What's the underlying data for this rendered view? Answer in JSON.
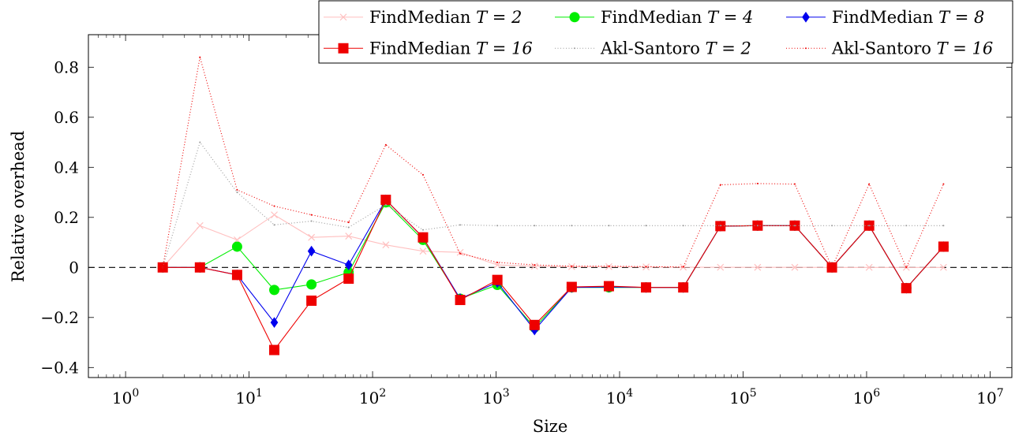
{
  "chart_data": {
    "type": "line",
    "xlabel": "Size",
    "ylabel": "Relative overhead",
    "xscale": "log10",
    "xlim": [
      0.5,
      15000000
    ],
    "ylim": [
      -0.44,
      0.93
    ],
    "grid": false,
    "legend_position": "top-right",
    "reference_line": {
      "y": 0,
      "style": "dashed",
      "color": "#000000"
    },
    "x_ticks": [
      {
        "base": "10",
        "exp": "0",
        "value": 1
      },
      {
        "base": "10",
        "exp": "1",
        "value": 10
      },
      {
        "base": "10",
        "exp": "2",
        "value": 100
      },
      {
        "base": "10",
        "exp": "3",
        "value": 1000
      },
      {
        "base": "10",
        "exp": "4",
        "value": 10000
      },
      {
        "base": "10",
        "exp": "5",
        "value": 100000
      },
      {
        "base": "10",
        "exp": "6",
        "value": 1000000
      },
      {
        "base": "10",
        "exp": "7",
        "value": 10000000
      }
    ],
    "y_ticks": [
      {
        "label": "−0.4",
        "value": -0.4
      },
      {
        "label": "−0.2",
        "value": -0.2
      },
      {
        "label": "0",
        "value": 0
      },
      {
        "label": "0.2",
        "value": 0.2
      },
      {
        "label": "0.4",
        "value": 0.4
      },
      {
        "label": "0.6",
        "value": 0.6
      },
      {
        "label": "0.8",
        "value": 0.8
      }
    ],
    "x": [
      2,
      4,
      8,
      16,
      32,
      64,
      128,
      256,
      512,
      1024,
      2048,
      4096,
      8192,
      16384,
      32768,
      65536,
      131072,
      262144,
      524288,
      1048576,
      2097152,
      4194304
    ],
    "series": [
      {
        "name": "FindMedian",
        "param": "T = 2",
        "color": "#ffbfbf",
        "marker": "x",
        "dash": "",
        "values": [
          0,
          0.167,
          0.11,
          0.21,
          0.12,
          0.125,
          0.09,
          0.065,
          0.06,
          0.01,
          0.005,
          0.003,
          0.003,
          0.002,
          0.001,
          0.0005,
          0.0003,
          0.0002,
          0.0001,
          0.0001,
          0.0001,
          0.0001
        ]
      },
      {
        "name": "FindMedian",
        "param": "T = 4",
        "color": "#00ee00",
        "marker": "circle",
        "dash": "",
        "values": [
          0,
          0,
          0.083,
          -0.09,
          -0.068,
          -0.02,
          0.26,
          0.11,
          -0.125,
          -0.07,
          -0.24,
          -0.08,
          -0.08,
          -0.08,
          -0.08,
          0.165,
          0.167,
          0.167,
          0,
          0.167,
          -0.083,
          0.083
        ]
      },
      {
        "name": "FindMedian",
        "param": "T = 8",
        "color": "#0000ee",
        "marker": "diamond",
        "dash": "",
        "values": [
          0,
          0,
          -0.03,
          -0.22,
          0.065,
          0.01,
          0.27,
          0.12,
          -0.125,
          -0.06,
          -0.25,
          -0.08,
          -0.078,
          -0.08,
          -0.08,
          0.165,
          0.167,
          0.167,
          0,
          0.167,
          -0.083,
          0.083
        ]
      },
      {
        "name": "FindMedian",
        "param": "T = 16",
        "color": "#ee0000",
        "marker": "square",
        "dash": "",
        "values": [
          0,
          0,
          -0.03,
          -0.33,
          -0.133,
          -0.045,
          0.27,
          0.12,
          -0.13,
          -0.05,
          -0.23,
          -0.078,
          -0.075,
          -0.08,
          -0.08,
          0.165,
          0.167,
          0.167,
          0,
          0.167,
          -0.083,
          0.083
        ]
      },
      {
        "name": "Akl-Santoro",
        "param": "T = 2",
        "color": "#9a9a9a",
        "marker": "dot",
        "dash": "1,2.5",
        "values": [
          0,
          0.5,
          0.3,
          0.17,
          0.185,
          0.16,
          0.25,
          0.15,
          0.17,
          0.167,
          0.167,
          0.167,
          0.167,
          0.167,
          0.167,
          0.167,
          0.167,
          0.167,
          0.167,
          0.167,
          0.167,
          0.167
        ]
      },
      {
        "name": "Akl-Santoro",
        "param": "T = 16",
        "color": "#ee0000",
        "marker": "dot",
        "dash": "1,2.5",
        "values": [
          0,
          0.84,
          0.31,
          0.245,
          0.21,
          0.18,
          0.49,
          0.37,
          0.055,
          0.02,
          0.01,
          0.005,
          0.005,
          0.003,
          0.002,
          0.33,
          0.335,
          0.333,
          0,
          0.333,
          0,
          0.333
        ]
      }
    ]
  }
}
